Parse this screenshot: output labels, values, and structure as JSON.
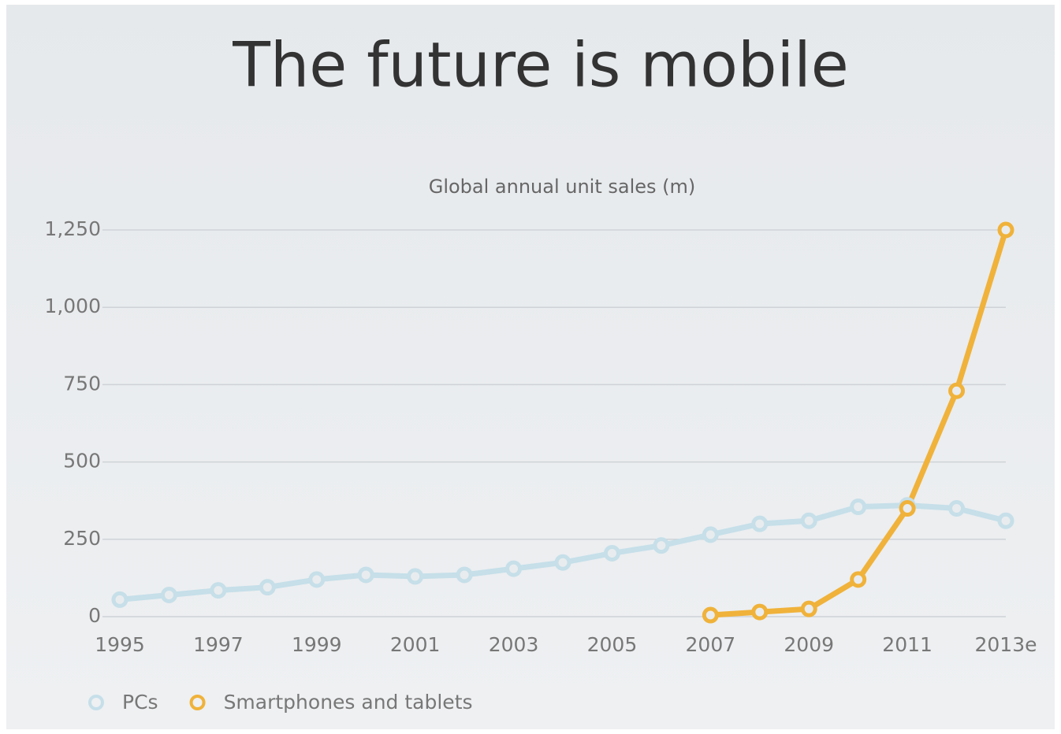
{
  "chart_data": {
    "type": "line",
    "title": "The future is mobile",
    "subtitle": "Global annual unit sales (m)",
    "categories": [
      "1995",
      null,
      "1997",
      null,
      "1999",
      null,
      "2001",
      null,
      "2003",
      null,
      "2005",
      null,
      "2007",
      null,
      "2009",
      null,
      "2011",
      null,
      "2013e"
    ],
    "series": [
      {
        "name": "PCs",
        "color": "#c6dfe9",
        "values": [
          55,
          70,
          85,
          95,
          120,
          135,
          130,
          135,
          155,
          175,
          205,
          230,
          265,
          300,
          310,
          355,
          360,
          350,
          310
        ]
      },
      {
        "name": "Smartphones and tablets",
        "color": "#f0b23a",
        "values": [
          null,
          null,
          null,
          null,
          null,
          null,
          null,
          null,
          null,
          null,
          null,
          null,
          5,
          15,
          25,
          120,
          350,
          730,
          1250
        ]
      }
    ],
    "ylim": [
      0,
      1250
    ],
    "yticks": [
      0,
      250,
      500,
      750,
      {
        "value": 1000,
        "label": "1,000"
      },
      {
        "value": 1250,
        "label": "1,250"
      }
    ],
    "grid": true
  }
}
